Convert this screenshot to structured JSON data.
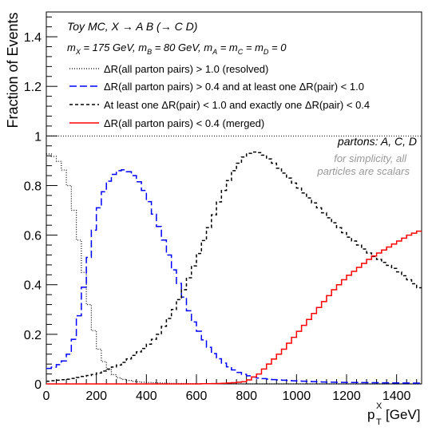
{
  "chart_data": {
    "type": "line",
    "title": "",
    "xlabel": "p_T^X [GeV]",
    "ylabel": "Fraction of Events",
    "xlim": [
      0,
      1500
    ],
    "ylim": [
      0,
      1.5
    ],
    "x_ticks": [
      "0",
      "200",
      "400",
      "600",
      "800",
      "1000",
      "1200",
      "1400"
    ],
    "y_ticks": [
      "0",
      "0.2",
      "0.4",
      "0.6",
      "0.8",
      "1",
      "1.2",
      "1.4"
    ],
    "grid": false,
    "reference_line": {
      "y": 1.0,
      "style": "dotted"
    },
    "legend_placement": "top-left",
    "annotations": {
      "header_line1": "Toy MC, X → A B (→ C D)",
      "header_line2": "m_X = 175 GeV, m_B = 80 GeV, m_A = m_C = m_D = 0",
      "partons_note": "partons: A, C, D",
      "simplicity_line1": "for simplicity, all",
      "simplicity_line2": "particles are scalars"
    },
    "series": [
      {
        "name": "ΔR(all parton pairs) > 1.0 (resolved)",
        "color": "#000000",
        "style": "dotted",
        "x": [
          0,
          20,
          40,
          60,
          80,
          100,
          120,
          140,
          160,
          180,
          200,
          220,
          240,
          260,
          280,
          300,
          350,
          400,
          450,
          500,
          600,
          800,
          1000,
          1500
        ],
        "y": [
          0.93,
          0.925,
          0.91,
          0.885,
          0.84,
          0.76,
          0.64,
          0.52,
          0.38,
          0.26,
          0.17,
          0.11,
          0.07,
          0.045,
          0.03,
          0.02,
          0.01,
          0.006,
          0.004,
          0.002,
          0.001,
          0.0,
          0.0,
          0.0
        ]
      },
      {
        "name": "ΔR(all parton pairs) > 0.4 and at least one ΔR(pair) < 1.0",
        "color": "#0000ff",
        "style": "dashed",
        "x": [
          0,
          40,
          80,
          100,
          120,
          140,
          160,
          180,
          200,
          220,
          240,
          260,
          280,
          300,
          320,
          340,
          360,
          380,
          400,
          420,
          440,
          460,
          480,
          500,
          520,
          540,
          560,
          580,
          600,
          640,
          680,
          720,
          760,
          800,
          840,
          900,
          1000,
          1100,
          1200,
          1300,
          1400,
          1500
        ],
        "y": [
          0.06,
          0.07,
          0.1,
          0.14,
          0.22,
          0.33,
          0.45,
          0.57,
          0.67,
          0.75,
          0.8,
          0.835,
          0.855,
          0.865,
          0.862,
          0.85,
          0.83,
          0.8,
          0.76,
          0.71,
          0.66,
          0.61,
          0.55,
          0.49,
          0.43,
          0.38,
          0.32,
          0.27,
          0.23,
          0.16,
          0.11,
          0.075,
          0.05,
          0.035,
          0.025,
          0.018,
          0.012,
          0.008,
          0.006,
          0.005,
          0.004,
          0.003
        ]
      },
      {
        "name": "At least one ΔR(pair) < 1.0 and exactly one ΔR(pair) < 0.4",
        "color": "#000000",
        "style": "dashed",
        "x": [
          0,
          100,
          200,
          300,
          400,
          450,
          500,
          550,
          600,
          650,
          700,
          750,
          780,
          800,
          820,
          840,
          860,
          880,
          900,
          950,
          1000,
          1050,
          1100,
          1150,
          1200,
          1250,
          1300,
          1350,
          1400,
          1450,
          1500
        ],
        "y": [
          0.01,
          0.02,
          0.04,
          0.08,
          0.15,
          0.2,
          0.28,
          0.38,
          0.5,
          0.63,
          0.76,
          0.86,
          0.905,
          0.925,
          0.935,
          0.935,
          0.93,
          0.915,
          0.9,
          0.85,
          0.8,
          0.75,
          0.7,
          0.65,
          0.6,
          0.56,
          0.52,
          0.49,
          0.46,
          0.42,
          0.38
        ]
      },
      {
        "name": "ΔR(all parton pairs) < 0.4 (merged)",
        "color": "#ff0000",
        "style": "solid",
        "x": [
          0,
          600,
          700,
          750,
          800,
          850,
          900,
          950,
          1000,
          1050,
          1100,
          1150,
          1200,
          1250,
          1300,
          1350,
          1400,
          1450,
          1500
        ],
        "y": [
          0.0,
          0.0,
          0.002,
          0.005,
          0.01,
          0.04,
          0.09,
          0.14,
          0.2,
          0.26,
          0.32,
          0.38,
          0.43,
          0.47,
          0.51,
          0.54,
          0.57,
          0.6,
          0.62
        ]
      }
    ]
  }
}
